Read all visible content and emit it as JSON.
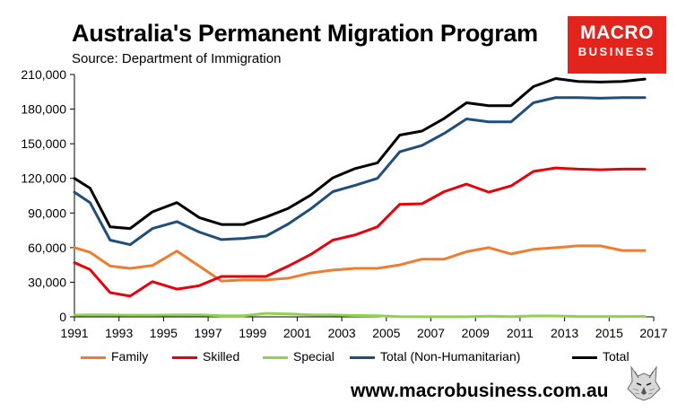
{
  "header": {
    "title": "Australia's Permanent Migration Program",
    "source": "Source: Department of Immigration"
  },
  "logo": {
    "line1": "MACRO",
    "line2": "BUSINESS",
    "color": "#e2241c"
  },
  "footer": {
    "website": "www.macrobusiness.com.au"
  },
  "chart_data": {
    "type": "line",
    "title": "Australia's Permanent Migration Program",
    "xlim": [
      1991,
      2017
    ],
    "ylim": [
      0,
      210000
    ],
    "x_ticks": [
      1991,
      1993,
      1995,
      1997,
      1999,
      2001,
      2003,
      2005,
      2007,
      2009,
      2011,
      2013,
      2015,
      2017
    ],
    "y_ticks": [
      0,
      30000,
      60000,
      90000,
      120000,
      150000,
      180000,
      210000
    ],
    "y_tick_labels": [
      "0",
      "30,000",
      "60,000",
      "90,000",
      "120,000",
      "150,000",
      "180,000",
      "210,000"
    ],
    "grid": "none",
    "legend_position": "bottom",
    "x": [
      1991,
      1991.7,
      1992.6,
      1993.5,
      1994.5,
      1995.6,
      1996.6,
      1997.6,
      1998.6,
      1999.6,
      2000.6,
      2001.6,
      2002.6,
      2003.6,
      2004.6,
      2005.6,
      2006.6,
      2007.6,
      2008.6,
      2009.6,
      2010.6,
      2011.6,
      2012.6,
      2013.6,
      2014.6,
      2015.6,
      2016.6
    ],
    "series": [
      {
        "name": "Family",
        "color": "#ed7d31",
        "values": [
          60000,
          56000,
          44000,
          42000,
          44500,
          57000,
          44000,
          31000,
          32000,
          32000,
          33500,
          38000,
          40500,
          42000,
          42000,
          45000,
          50000,
          50000,
          56500,
          60000,
          54500,
          58500,
          60000,
          61500,
          61500,
          57500,
          57500
        ]
      },
      {
        "name": "Skilled",
        "color": "#e8000b",
        "values": [
          47000,
          41000,
          21000,
          18000,
          30500,
          24000,
          27000,
          35000,
          35000,
          35000,
          44000,
          54000,
          66500,
          71000,
          78000,
          97500,
          98000,
          108500,
          115000,
          108000,
          113500,
          126000,
          129000,
          128000,
          127500,
          128000,
          128000
        ]
      },
      {
        "name": "Special",
        "color": "#92d050",
        "values": [
          1500,
          1800,
          1600,
          1500,
          1500,
          1600,
          1700,
          1000,
          1000,
          3000,
          2500,
          1800,
          1600,
          1200,
          1000,
          200,
          100,
          100,
          100,
          600,
          200,
          800,
          800,
          300,
          300,
          300,
          400
        ]
      },
      {
        "name": "Total (Non-Humanitarian)",
        "color": "#1f4e79",
        "values": [
          108000,
          99000,
          66500,
          62500,
          76500,
          82500,
          73500,
          67000,
          68000,
          70000,
          80500,
          93500,
          108500,
          114000,
          120000,
          143000,
          148500,
          159000,
          171500,
          169000,
          169000,
          185500,
          190000,
          190000,
          189500,
          190000,
          190000
        ]
      },
      {
        "name": "Total",
        "color": "#000000",
        "values": [
          120000,
          111500,
          78000,
          76500,
          91000,
          99000,
          86000,
          80000,
          80000,
          86500,
          94000,
          105500,
          120500,
          128500,
          133500,
          157500,
          161000,
          172000,
          185500,
          183000,
          183000,
          199500,
          206500,
          204000,
          203500,
          204000,
          206000
        ]
      }
    ]
  }
}
